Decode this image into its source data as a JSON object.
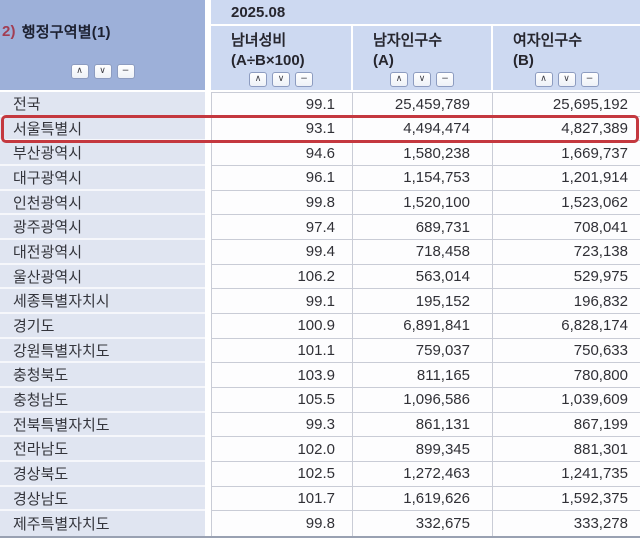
{
  "period": "2025.08",
  "row_header": {
    "prefix": "2)",
    "label": "행정구역별(1)"
  },
  "columns": [
    {
      "label": "남녀성비",
      "sub": "(A÷B×100)"
    },
    {
      "label": "남자인구수",
      "sub": "(A)"
    },
    {
      "label": "여자인구수",
      "sub": "(B)"
    }
  ],
  "sort_icons": {
    "asc": "∧",
    "desc": "∨",
    "minus": "−"
  },
  "rows": [
    {
      "region": "전국",
      "ratio": "99.1",
      "male": "25,459,789",
      "female": "25,695,192",
      "highlight": false
    },
    {
      "region": "서울특별시",
      "ratio": "93.1",
      "male": "4,494,474",
      "female": "4,827,389",
      "highlight": true
    },
    {
      "region": "부산광역시",
      "ratio": "94.6",
      "male": "1,580,238",
      "female": "1,669,737",
      "highlight": false
    },
    {
      "region": "대구광역시",
      "ratio": "96.1",
      "male": "1,154,753",
      "female": "1,201,914",
      "highlight": false
    },
    {
      "region": "인천광역시",
      "ratio": "99.8",
      "male": "1,520,100",
      "female": "1,523,062",
      "highlight": false
    },
    {
      "region": "광주광역시",
      "ratio": "97.4",
      "male": "689,731",
      "female": "708,041",
      "highlight": false
    },
    {
      "region": "대전광역시",
      "ratio": "99.4",
      "male": "718,458",
      "female": "723,138",
      "highlight": false
    },
    {
      "region": "울산광역시",
      "ratio": "106.2",
      "male": "563,014",
      "female": "529,975",
      "highlight": false
    },
    {
      "region": "세종특별자치시",
      "ratio": "99.1",
      "male": "195,152",
      "female": "196,832",
      "highlight": false
    },
    {
      "region": "경기도",
      "ratio": "100.9",
      "male": "6,891,841",
      "female": "6,828,174",
      "highlight": false
    },
    {
      "region": "강원특별자치도",
      "ratio": "101.1",
      "male": "759,037",
      "female": "750,633",
      "highlight": false
    },
    {
      "region": "충청북도",
      "ratio": "103.9",
      "male": "811,165",
      "female": "780,800",
      "highlight": false
    },
    {
      "region": "충청남도",
      "ratio": "105.5",
      "male": "1,096,586",
      "female": "1,039,609",
      "highlight": false
    },
    {
      "region": "전북특별자치도",
      "ratio": "99.3",
      "male": "861,131",
      "female": "867,199",
      "highlight": false
    },
    {
      "region": "전라남도",
      "ratio": "102.0",
      "male": "899,345",
      "female": "881,301",
      "highlight": false
    },
    {
      "region": "경상북도",
      "ratio": "102.5",
      "male": "1,272,463",
      "female": "1,241,735",
      "highlight": false
    },
    {
      "region": "경상남도",
      "ratio": "101.7",
      "male": "1,619,626",
      "female": "1,592,375",
      "highlight": false
    },
    {
      "region": "제주특별자치도",
      "ratio": "99.8",
      "male": "332,675",
      "female": "333,278",
      "highlight": false
    }
  ],
  "colors": {
    "header_left": "#9db0d9",
    "header_right": "#cdd9f1",
    "left_col": "#e0e5f1",
    "cell_bg": "#fdfdfe",
    "grid": "#c9ccd6",
    "highlight_border": "#c4383f",
    "title_index": "#a23d52",
    "table_bottom_border": "#99a1b2"
  }
}
